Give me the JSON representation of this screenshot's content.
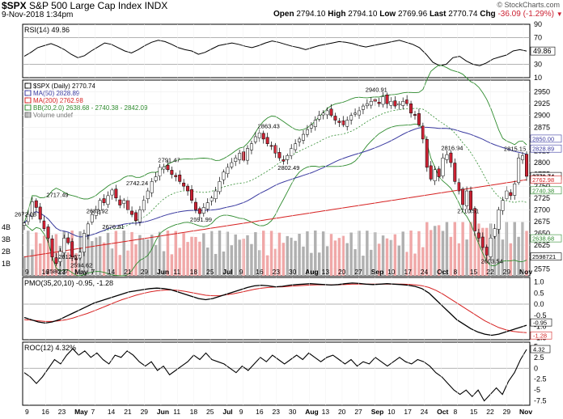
{
  "header": {
    "symbol": "$SPX",
    "name": "S&P 500 Large Cap Index",
    "exchange": "INDX",
    "date": "9-Nov-2018 1:34pm",
    "brand": "© StockCharts.com",
    "open_label": "Open",
    "open": "2794.10",
    "high_label": "High",
    "high": "2794.10",
    "low_label": "Low",
    "low": "2769.96",
    "last_label": "Last",
    "last": "2770.74",
    "chg_label": "Chg",
    "chg": "-36.09 (-1.29%)",
    "chg_icon": "down-triangle-icon"
  },
  "colors": {
    "up_candle": "#ffffff",
    "down_candle": "#cc2233",
    "ma50": "#3a3aa0",
    "ma200": "#d62020",
    "bollinger": "#2e8b2e",
    "volume_up": "#b0b0b0",
    "volume_down": "#f0a8a8"
  },
  "chart_data": [
    {
      "type": "line",
      "title": "RSI(14) 49.86",
      "ylim": [
        10,
        90
      ],
      "yticks": [
        "90",
        "70",
        "50",
        "30",
        "10"
      ],
      "last_value_label": "49.86",
      "series": [
        {
          "name": "RSI(14)",
          "values": [
            42,
            48,
            55,
            58,
            61,
            57,
            52,
            45,
            40,
            43,
            50,
            56,
            62,
            60,
            55,
            50,
            47,
            52,
            58,
            63,
            66,
            64,
            60,
            55,
            52,
            50,
            45,
            48,
            53,
            58,
            60,
            62,
            60,
            57,
            55,
            58,
            62,
            65,
            63,
            60,
            57,
            55,
            52,
            55,
            58,
            60,
            62,
            64,
            63,
            61,
            58,
            56,
            58,
            60,
            62,
            64,
            66,
            63,
            60,
            55,
            45,
            33,
            28,
            30,
            40,
            42,
            35,
            30,
            28,
            32,
            38,
            41,
            44,
            50,
            52,
            49.86
          ]
        }
      ]
    },
    {
      "type": "candlestick",
      "title": "$SPX (Daily) 2770.74",
      "ylim": [
        2560,
        2975
      ],
      "yticks": [
        "2950",
        "2925",
        "2900",
        "2875",
        "2850",
        "2825",
        "2800",
        "2775",
        "2750",
        "2725",
        "2700",
        "2675",
        "2650",
        "2625",
        "2600",
        "2575"
      ],
      "volume_ticks": [
        "4B",
        "3B",
        "2B",
        "1B"
      ],
      "xticks": [
        "9",
        "16",
        "23",
        "May",
        "7",
        "14",
        "21",
        "29",
        "Jun",
        "11",
        "18",
        "25",
        "Jul",
        "9",
        "16",
        "23",
        "30",
        "Aug",
        "13",
        "20",
        "27",
        "Sep",
        "10",
        "17",
        "24",
        "Oct",
        "8",
        "15",
        "22",
        "29",
        "Nov"
      ],
      "legend": [
        {
          "text": "$SPX (Daily) 2770.74",
          "icon": "candlestick-icon"
        },
        {
          "text": "MA(50) 2828.89",
          "icon": "ma50-line-icon"
        },
        {
          "text": "MA(200) 2762.98",
          "icon": "ma200-line-icon"
        },
        {
          "text": "BB(20,2.0) 2638.68 - 2740.38 - 2842.09",
          "icon": "bollinger-line-icon"
        },
        {
          "text": "Volume undef",
          "icon": "volume-bar-icon"
        }
      ],
      "annotations": [
        "2672.08",
        "2717.49",
        "2682.92",
        "2586.27",
        "2612.67",
        "2594.62",
        "2742.24",
        "2676.81",
        "2791.47",
        "2691.99",
        "2863.43",
        "2802.49",
        "2940.91",
        "2816.94",
        "2710.51",
        "2815.15",
        "2603.54"
      ],
      "right_labels": [
        "2850.00",
        "2828.89",
        "2770.74",
        "2762.98",
        "2740.38",
        "2638.68",
        "2598721"
      ],
      "series": [
        {
          "name": "close",
          "values": [
            2672,
            2690,
            2717,
            2705,
            2680,
            2660,
            2640,
            2600,
            2586,
            2612,
            2640,
            2630,
            2600,
            2595,
            2610,
            2650,
            2670,
            2690,
            2700,
            2720,
            2715,
            2730,
            2742,
            2725,
            2710,
            2720,
            2700,
            2690,
            2677,
            2700,
            2720,
            2740,
            2760,
            2770,
            2790,
            2791,
            2785,
            2775,
            2770,
            2760,
            2750,
            2740,
            2720,
            2700,
            2692,
            2705,
            2715,
            2725,
            2740,
            2760,
            2780,
            2790,
            2800,
            2810,
            2820,
            2805,
            2830,
            2840,
            2855,
            2863,
            2850,
            2840,
            2835,
            2820,
            2810,
            2803,
            2815,
            2830,
            2840,
            2850,
            2860,
            2870,
            2880,
            2890,
            2900,
            2905,
            2910,
            2900,
            2890,
            2885,
            2880,
            2890,
            2900,
            2905,
            2910,
            2920,
            2925,
            2930,
            2930,
            2925,
            2940,
            2925,
            2930,
            2920,
            2925,
            2930,
            2925,
            2905,
            2900,
            2880,
            2850,
            2790,
            2765,
            2785,
            2770,
            2810,
            2817,
            2800,
            2760,
            2740,
            2711,
            2740,
            2700,
            2655,
            2640,
            2620,
            2604,
            2640,
            2660,
            2700,
            2720,
            2740,
            2730,
            2755,
            2810,
            2815,
            2771
          ]
        }
      ]
    },
    {
      "type": "line",
      "title": "PMO(35,20,10) -0.95, -1.28",
      "ylim": [
        -1.6,
        1.2
      ],
      "yticks": [
        "1.0",
        "0.5",
        "0.0",
        "-0.5",
        "-1.0",
        "-1.5"
      ],
      "last_value_labels": [
        "-0.95",
        "-1.28"
      ],
      "series": [
        {
          "name": "PMO",
          "values": [
            -0.6,
            -0.7,
            -0.8,
            -0.85,
            -0.8,
            -0.7,
            -0.55,
            -0.4,
            -0.25,
            -0.1,
            0.05,
            0.15,
            0.25,
            0.35,
            0.45,
            0.55,
            0.6,
            0.65,
            0.7,
            0.72,
            0.7,
            0.65,
            0.55,
            0.45,
            0.35,
            0.25,
            0.2,
            0.25,
            0.35,
            0.45,
            0.55,
            0.65,
            0.75,
            0.82,
            0.85,
            0.82,
            0.78,
            0.8,
            0.85,
            0.88,
            0.9,
            0.92,
            0.9,
            0.88,
            0.86,
            0.88,
            0.92,
            0.95,
            0.93,
            0.9,
            0.88,
            0.9,
            0.92,
            0.9,
            0.88,
            0.85,
            0.8,
            0.7,
            0.5,
            0.2,
            -0.1,
            -0.4,
            -0.7,
            -0.9,
            -1.1,
            -1.25,
            -1.35,
            -1.4,
            -1.35,
            -1.25,
            -1.15,
            -1.05,
            -0.95
          ]
        },
        {
          "name": "Signal",
          "values": [
            -0.7,
            -0.72,
            -0.75,
            -0.78,
            -0.78,
            -0.75,
            -0.7,
            -0.62,
            -0.52,
            -0.42,
            -0.3,
            -0.18,
            -0.05,
            0.08,
            0.2,
            0.3,
            0.4,
            0.48,
            0.55,
            0.6,
            0.63,
            0.64,
            0.62,
            0.58,
            0.52,
            0.46,
            0.4,
            0.38,
            0.38,
            0.42,
            0.47,
            0.53,
            0.6,
            0.67,
            0.72,
            0.75,
            0.77,
            0.78,
            0.8,
            0.82,
            0.84,
            0.86,
            0.87,
            0.87,
            0.87,
            0.87,
            0.88,
            0.9,
            0.9,
            0.9,
            0.9,
            0.9,
            0.9,
            0.9,
            0.9,
            0.89,
            0.87,
            0.83,
            0.75,
            0.62,
            0.45,
            0.25,
            0.05,
            -0.15,
            -0.35,
            -0.55,
            -0.75,
            -0.9,
            -1.05,
            -1.15,
            -1.22,
            -1.26,
            -1.28
          ]
        }
      ]
    },
    {
      "type": "line",
      "title": "ROC(12) 4.32%",
      "ylim": [
        -8.5,
        6
      ],
      "yticks": [
        "5",
        "2.5",
        "0",
        "-2.5",
        "-5",
        "-7.5"
      ],
      "last_value_label": "4.32",
      "series": [
        {
          "name": "ROC(12)",
          "values": [
            -1,
            -2,
            -3.5,
            -2,
            0,
            2,
            1,
            3,
            4.5,
            3,
            4,
            2.5,
            3.5,
            2,
            1,
            3,
            2.5,
            4,
            3,
            1.5,
            0.5,
            1.5,
            -0.5,
            0.5,
            -1.5,
            -0.5,
            0.5,
            1.5,
            3,
            2,
            3.5,
            2,
            1.5,
            1,
            0,
            -1,
            0.5,
            -0.5,
            1,
            2.5,
            1.5,
            3,
            2,
            1,
            2,
            3,
            2,
            3.5,
            2.5,
            1.5,
            2.5,
            3,
            2,
            1,
            2,
            0.5,
            1.5,
            1,
            2.5,
            1.5,
            0.5,
            1.5,
            2.5,
            1.5,
            1,
            2,
            1.5,
            0.5,
            -1,
            -2,
            -3.5,
            -5,
            -6,
            -5,
            -6.5,
            -5,
            -7.5,
            -6,
            -4.5,
            -6,
            -3,
            -1,
            2,
            4.32
          ]
        }
      ]
    }
  ]
}
